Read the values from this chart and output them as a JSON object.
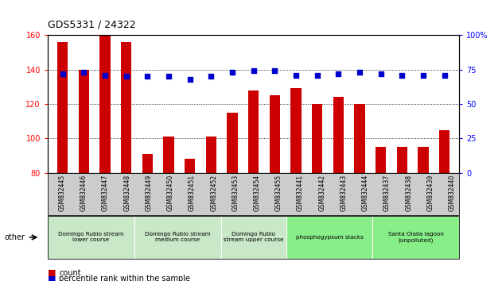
{
  "title": "GDS5331 / 24322",
  "samples": [
    "GSM832445",
    "GSM832446",
    "GSM832447",
    "GSM832448",
    "GSM832449",
    "GSM832450",
    "GSM832451",
    "GSM832452",
    "GSM832453",
    "GSM832454",
    "GSM832455",
    "GSM832441",
    "GSM832442",
    "GSM832443",
    "GSM832444",
    "GSM832437",
    "GSM832438",
    "GSM832439",
    "GSM832440"
  ],
  "count_values": [
    156,
    140,
    160,
    156,
    91,
    101,
    88,
    101,
    115,
    128,
    125,
    129,
    120,
    124,
    120,
    95,
    95,
    95,
    105
  ],
  "percentile_values": [
    72,
    73,
    71,
    70,
    70,
    70,
    68,
    70,
    73,
    74,
    74,
    71,
    71,
    72,
    73,
    72,
    71,
    71,
    71
  ],
  "ylim_left": [
    80,
    160
  ],
  "ylim_right": [
    0,
    100
  ],
  "yticks_left": [
    80,
    100,
    120,
    140,
    160
  ],
  "yticks_right": [
    0,
    25,
    50,
    75,
    100
  ],
  "bar_color": "#cc0000",
  "dot_color": "#0000cc",
  "groups": [
    {
      "label": "Domingo Rubio stream\nlower course",
      "start": 0,
      "end": 3,
      "color": "#c8e8c8"
    },
    {
      "label": "Domingo Rubio stream\nmedium course",
      "start": 4,
      "end": 7,
      "color": "#c8e8c8"
    },
    {
      "label": "Domingo Rubio\nstream upper course",
      "start": 8,
      "end": 10,
      "color": "#c8e8c8"
    },
    {
      "label": "phosphogypsum stacks",
      "start": 11,
      "end": 14,
      "color": "#88ee88"
    },
    {
      "label": "Santa Olalla lagoon\n(unpolluted)",
      "start": 15,
      "end": 18,
      "color": "#88ee88"
    }
  ],
  "legend_count_label": "count",
  "legend_pct_label": "percentile rank within the sample",
  "other_label": "other",
  "background_color": "#ffffff",
  "tick_area_color": "#cccccc"
}
